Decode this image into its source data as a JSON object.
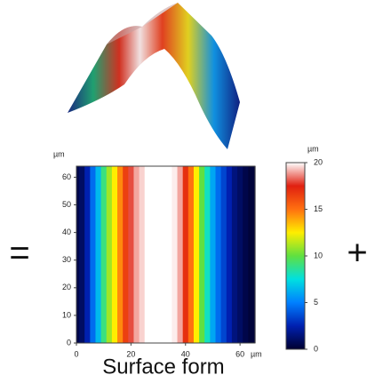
{
  "symbols": {
    "equals": "=",
    "plus": "+"
  },
  "chart_data": {
    "type": "heatmap",
    "title": "Surface form",
    "x_unit": "µm",
    "y_unit": "µm",
    "colorbar_unit": "µm",
    "x": [
      0,
      2,
      4,
      6,
      8,
      10,
      12,
      14,
      16,
      18,
      20,
      22,
      24,
      26,
      28,
      30,
      32,
      34,
      36,
      38,
      40,
      42,
      44,
      46,
      48,
      50,
      52,
      54,
      56,
      58,
      60,
      62,
      64
    ],
    "values": [
      0.5,
      1,
      2.5,
      4.5,
      6.5,
      9,
      11,
      12.5,
      14.5,
      16.5,
      18,
      19,
      19.5,
      20,
      20,
      20,
      20,
      20,
      19.8,
      19,
      17,
      15,
      12.5,
      10,
      8,
      6,
      4.5,
      3.5,
      2.5,
      1.5,
      1,
      0.5,
      0.2
    ],
    "xlim": [
      0,
      65.5
    ],
    "xticks": [
      0,
      20,
      40,
      60
    ],
    "ylim": [
      0,
      64
    ],
    "yticks": [
      0,
      10,
      20,
      30,
      40,
      50,
      60
    ],
    "zlim": [
      0,
      20
    ],
    "zticks": [
      0,
      5,
      10,
      15,
      20
    ],
    "colors": [
      "#000030",
      "#0020b0",
      "#0080ff",
      "#00e0e0",
      "#60e040",
      "#ffee00",
      "#ff7010",
      "#e02010",
      "#ffffff"
    ]
  }
}
